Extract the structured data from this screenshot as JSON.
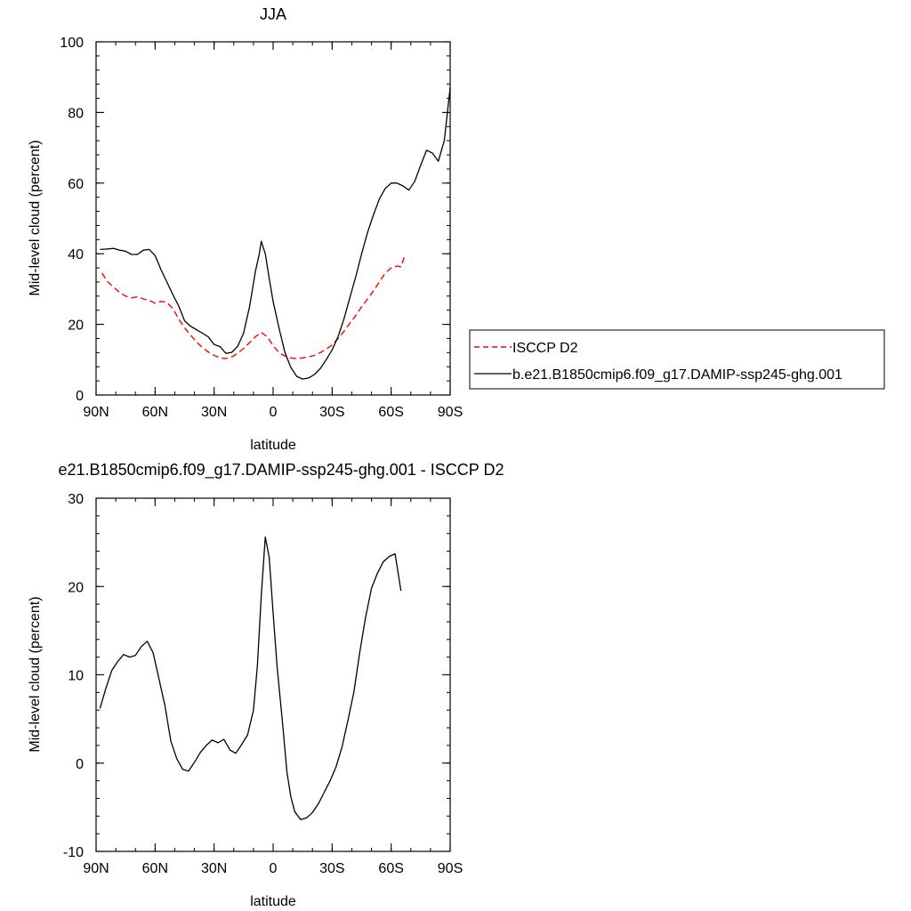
{
  "colors": {
    "isccp": "#ff0000",
    "model": "#000000",
    "axis": "#000000"
  },
  "chart_data": [
    {
      "type": "line",
      "title": "JJA",
      "xlabel": "latitude",
      "ylabel": "Mid-level cloud (percent)",
      "xlim": [
        -90,
        90
      ],
      "ylim": [
        0,
        100
      ],
      "x_ticks": [
        -90,
        -60,
        -30,
        0,
        30,
        60,
        90
      ],
      "x_tick_labels": [
        "90N",
        "60N",
        "30N",
        "0",
        "30S",
        "60S",
        "90S"
      ],
      "y_ticks": [
        0,
        20,
        40,
        60,
        80,
        100
      ],
      "y_tick_labels": [
        "0",
        "20",
        "40",
        "60",
        "80",
        "100"
      ],
      "legend": {
        "position": "right",
        "entries": [
          "ISCCP D2",
          "b.e21.B1850cmip6.f09_g17.DAMIP-ssp245-ghg.001"
        ]
      },
      "series": [
        {
          "name": "ISCCP D2",
          "style": "dashed",
          "color": "#ff0000",
          "points": [
            [
              -87,
              34.5
            ],
            [
              -84,
              32
            ],
            [
              -81,
              30.5
            ],
            [
              -78,
              29
            ],
            [
              -75,
              28
            ],
            [
              -72,
              27.5
            ],
            [
              -69,
              27.8
            ],
            [
              -66,
              27.2
            ],
            [
              -63,
              26.8
            ],
            [
              -60,
              26
            ],
            [
              -57,
              26.5
            ],
            [
              -54,
              26.2
            ],
            [
              -51,
              24.5
            ],
            [
              -48,
              21.5
            ],
            [
              -45,
              19
            ],
            [
              -42,
              17
            ],
            [
              -39,
              15
            ],
            [
              -36,
              13.5
            ],
            [
              -33,
              12.2
            ],
            [
              -30,
              11.2
            ],
            [
              -27,
              10.5
            ],
            [
              -24,
              10.3
            ],
            [
              -21,
              10.8
            ],
            [
              -18,
              11.8
            ],
            [
              -15,
              13.2
            ],
            [
              -12,
              14.8
            ],
            [
              -9,
              16.5
            ],
            [
              -6,
              17.7
            ],
            [
              -3,
              16.5
            ],
            [
              0,
              14
            ],
            [
              3,
              12
            ],
            [
              6,
              11
            ],
            [
              9,
              10.5
            ],
            [
              12,
              10.3
            ],
            [
              15,
              10.5
            ],
            [
              18,
              10.8
            ],
            [
              21,
              11.2
            ],
            [
              24,
              12
            ],
            [
              27,
              13
            ],
            [
              30,
              14.2
            ],
            [
              33,
              16
            ],
            [
              36,
              18
            ],
            [
              39,
              20.3
            ],
            [
              42,
              22.5
            ],
            [
              45,
              25
            ],
            [
              48,
              27.2
            ],
            [
              51,
              29.5
            ],
            [
              54,
              32
            ],
            [
              57,
              34.5
            ],
            [
              60,
              36
            ],
            [
              63,
              36.5
            ],
            [
              65,
              36.3
            ],
            [
              67,
              39.5
            ]
          ]
        },
        {
          "name": "b.e21.B1850cmip6.f09_g17.DAMIP-ssp245-ghg.001",
          "style": "solid",
          "color": "#000000",
          "points": [
            [
              -88,
              41.2
            ],
            [
              -85,
              41.3
            ],
            [
              -81,
              41.5
            ],
            [
              -78,
              41
            ],
            [
              -75,
              40.7
            ],
            [
              -72,
              39.8
            ],
            [
              -69,
              39.8
            ],
            [
              -66,
              41
            ],
            [
              -63,
              41.2
            ],
            [
              -60,
              39.5
            ],
            [
              -57,
              35.5
            ],
            [
              -54,
              32
            ],
            [
              -51,
              28.5
            ],
            [
              -48,
              25.2
            ],
            [
              -45,
              21
            ],
            [
              -42,
              19.5
            ],
            [
              -39,
              18.5
            ],
            [
              -36,
              17.5
            ],
            [
              -33,
              16.5
            ],
            [
              -30,
              14.3
            ],
            [
              -27,
              13.7
            ],
            [
              -24,
              11.8
            ],
            [
              -21,
              12.1
            ],
            [
              -18,
              13.8
            ],
            [
              -15,
              17.5
            ],
            [
              -12,
              25
            ],
            [
              -9,
              35
            ],
            [
              -7,
              40
            ],
            [
              -6,
              43.5
            ],
            [
              -4,
              40
            ],
            [
              -2,
              33
            ],
            [
              0,
              26.5
            ],
            [
              3,
              19
            ],
            [
              6,
              12
            ],
            [
              9,
              7.8
            ],
            [
              12,
              5.3
            ],
            [
              15,
              4.5
            ],
            [
              18,
              4.8
            ],
            [
              21,
              5.8
            ],
            [
              24,
              7.5
            ],
            [
              27,
              10
            ],
            [
              30,
              12.8
            ],
            [
              33,
              16.5
            ],
            [
              36,
              21.5
            ],
            [
              39,
              27.5
            ],
            [
              42,
              33.5
            ],
            [
              45,
              40
            ],
            [
              48,
              46
            ],
            [
              51,
              51
            ],
            [
              54,
              55.5
            ],
            [
              57,
              58.5
            ],
            [
              60,
              60
            ],
            [
              63,
              60
            ],
            [
              66,
              59.2
            ],
            [
              69,
              58
            ],
            [
              72,
              60.5
            ],
            [
              75,
              65
            ],
            [
              78,
              69.3
            ],
            [
              81,
              68.5
            ],
            [
              84,
              66.2
            ],
            [
              87,
              72
            ],
            [
              90,
              87
            ]
          ]
        }
      ]
    },
    {
      "type": "line",
      "title": "e21.B1850cmip6.f09_g17.DAMIP-ssp245-ghg.001 - ISCCP D2",
      "xlabel": "latitude",
      "ylabel": "Mid-level cloud (percent)",
      "xlim": [
        -90,
        90
      ],
      "ylim": [
        -10,
        30
      ],
      "x_ticks": [
        -90,
        -60,
        -30,
        0,
        30,
        60,
        90
      ],
      "x_tick_labels": [
        "90N",
        "60N",
        "30N",
        "0",
        "30S",
        "60S",
        "90S"
      ],
      "y_ticks": [
        -10,
        0,
        10,
        20,
        30
      ],
      "y_tick_labels": [
        "-10",
        "0",
        "10",
        "20",
        "30"
      ],
      "series": [
        {
          "style": "solid",
          "color": "#000000",
          "points": [
            [
              -88,
              6.2
            ],
            [
              -85,
              8.5
            ],
            [
              -82,
              10.5
            ],
            [
              -79,
              11.5
            ],
            [
              -76,
              12.3
            ],
            [
              -73,
              12
            ],
            [
              -70,
              12.2
            ],
            [
              -67,
              13.2
            ],
            [
              -64,
              13.8
            ],
            [
              -61,
              12.5
            ],
            [
              -58,
              9.5
            ],
            [
              -55,
              6.5
            ],
            [
              -52,
              2.5
            ],
            [
              -49,
              0.5
            ],
            [
              -46,
              -0.7
            ],
            [
              -43,
              -0.9
            ],
            [
              -40,
              0.1
            ],
            [
              -37,
              1.2
            ],
            [
              -34,
              2
            ],
            [
              -31,
              2.6
            ],
            [
              -28,
              2.3
            ],
            [
              -25,
              2.7
            ],
            [
              -22,
              1.5
            ],
            [
              -19,
              1.1
            ],
            [
              -16,
              2.1
            ],
            [
              -13,
              3.2
            ],
            [
              -10,
              6
            ],
            [
              -8,
              11
            ],
            [
              -6,
              19
            ],
            [
              -4,
              25.6
            ],
            [
              -2,
              23.3
            ],
            [
              0,
              17
            ],
            [
              2,
              11
            ],
            [
              5,
              4
            ],
            [
              7,
              -1
            ],
            [
              9,
              -3.8
            ],
            [
              11,
              -5.5
            ],
            [
              14,
              -6.4
            ],
            [
              17,
              -6.2
            ],
            [
              20,
              -5.6
            ],
            [
              23,
              -4.6
            ],
            [
              26,
              -3.3
            ],
            [
              29,
              -2
            ],
            [
              32,
              -0.4
            ],
            [
              35,
              1.8
            ],
            [
              38,
              4.8
            ],
            [
              41,
              8
            ],
            [
              44,
              12.5
            ],
            [
              47,
              16.5
            ],
            [
              50,
              19.8
            ],
            [
              53,
              21.5
            ],
            [
              56,
              22.8
            ],
            [
              59,
              23.4
            ],
            [
              62,
              23.7
            ],
            [
              65,
              19.5
            ]
          ]
        }
      ]
    }
  ]
}
